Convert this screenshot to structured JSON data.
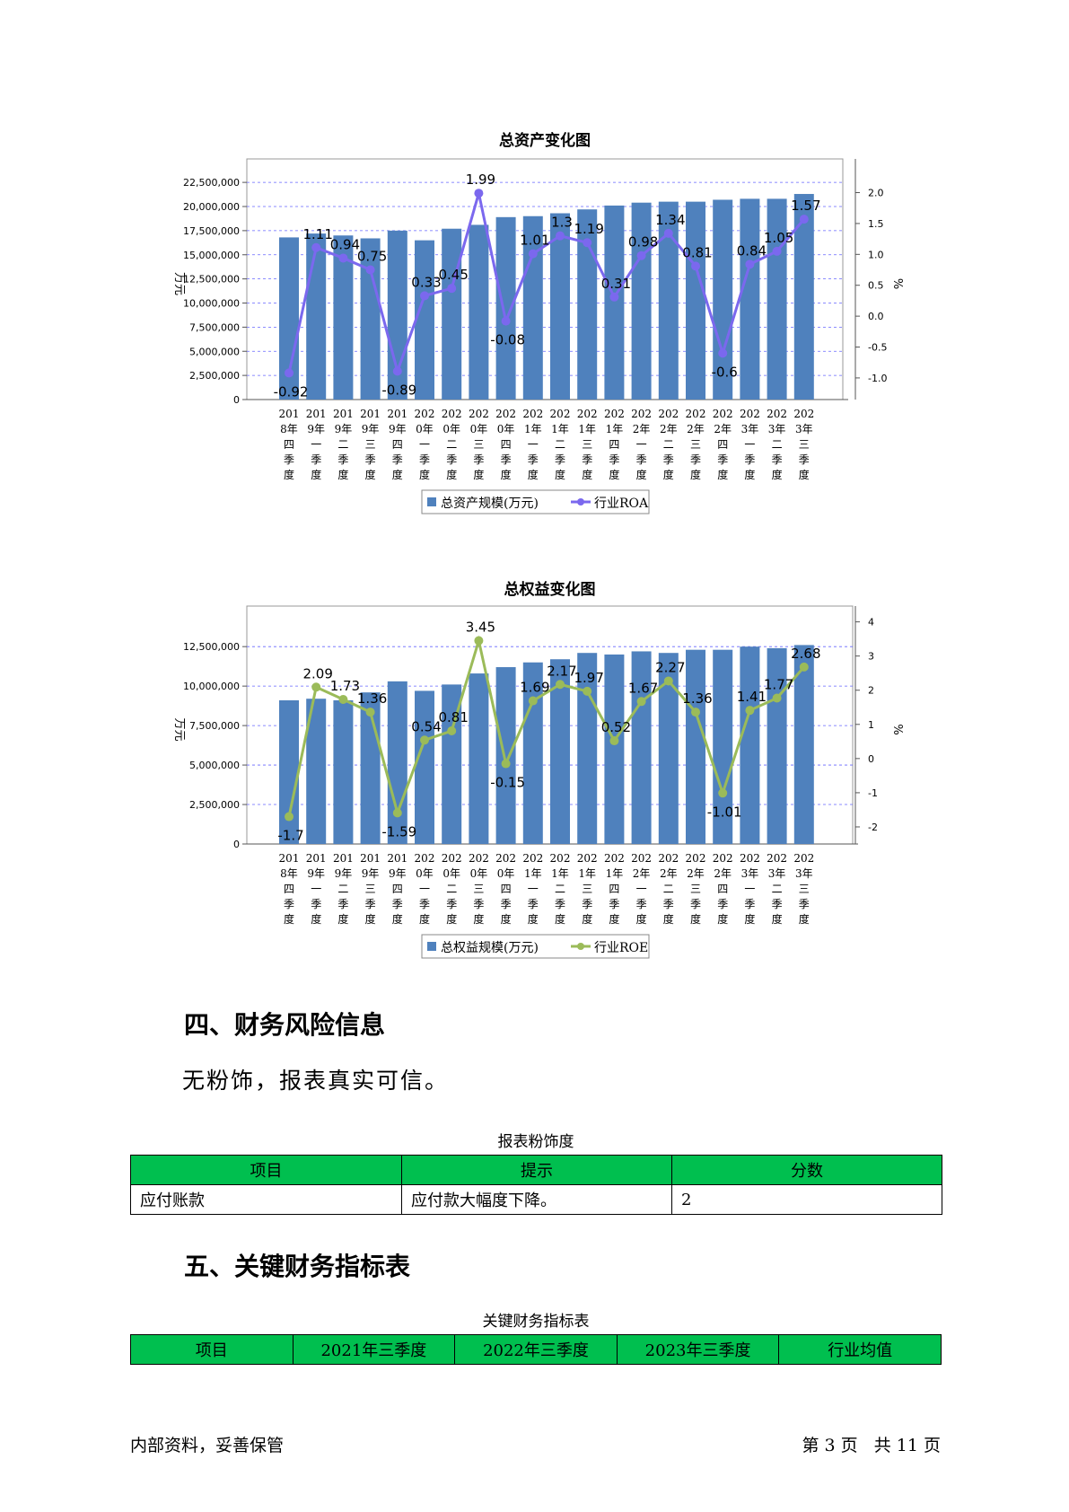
{
  "charts": [
    {
      "title": "总资产变化图",
      "left_axis_label": "万元",
      "right_axis_label": "%",
      "legend_bar": "总资产规模(万元)",
      "legend_line": "行业ROA"
    },
    {
      "title": "总权益变化图",
      "left_axis_label": "万元",
      "right_axis_label": "%",
      "legend_bar": "总权益规模(万元)",
      "legend_line": "行业ROE"
    }
  ],
  "chart_data": [
    {
      "type": "bar",
      "title": "总资产变化图",
      "categories": [
        [
          "201",
          "8年",
          "四",
          "季",
          "度"
        ],
        [
          "201",
          "9年",
          "一",
          "季",
          "度"
        ],
        [
          "201",
          "9年",
          "二",
          "季",
          "度"
        ],
        [
          "201",
          "9年",
          "三",
          "季",
          "度"
        ],
        [
          "201",
          "9年",
          "四",
          "季",
          "度"
        ],
        [
          "202",
          "0年",
          "一",
          "季",
          "度"
        ],
        [
          "202",
          "0年",
          "二",
          "季",
          "度"
        ],
        [
          "202",
          "0年",
          "三",
          "季",
          "度"
        ],
        [
          "202",
          "0年",
          "四",
          "季",
          "度"
        ],
        [
          "202",
          "1年",
          "一",
          "季",
          "度"
        ],
        [
          "202",
          "1年",
          "二",
          "季",
          "度"
        ],
        [
          "202",
          "1年",
          "三",
          "季",
          "度"
        ],
        [
          "202",
          "1年",
          "四",
          "季",
          "度"
        ],
        [
          "202",
          "2年",
          "一",
          "季",
          "度"
        ],
        [
          "202",
          "2年",
          "二",
          "季",
          "度"
        ],
        [
          "202",
          "2年",
          "三",
          "季",
          "度"
        ],
        [
          "202",
          "2年",
          "四",
          "季",
          "度"
        ],
        [
          "202",
          "3年",
          "一",
          "季",
          "度"
        ],
        [
          "202",
          "3年",
          "二",
          "季",
          "度"
        ],
        [
          "202",
          "3年",
          "三",
          "季",
          "度"
        ]
      ],
      "series": [
        {
          "name": "总资产规模(万元)",
          "axis": "left",
          "kind": "bar",
          "color": "#4f81bd",
          "values": [
            16800000,
            17200000,
            17000000,
            16700000,
            17500000,
            16500000,
            17700000,
            18100000,
            18900000,
            19000000,
            19300000,
            19700000,
            20100000,
            20400000,
            20500000,
            20500000,
            20700000,
            20800000,
            20800000,
            21300000
          ]
        },
        {
          "name": "行业ROA",
          "axis": "right",
          "kind": "line",
          "color": "#7b68ee",
          "values": [
            -0.92,
            1.11,
            0.94,
            0.75,
            -0.89,
            0.33,
            0.45,
            1.99,
            -0.08,
            1.01,
            1.3,
            1.19,
            0.31,
            0.98,
            1.34,
            0.81,
            -0.6,
            0.84,
            1.05,
            1.57
          ],
          "labels": [
            "-0.92",
            "1.11",
            "0.94",
            "0.75",
            "-0.89",
            "0.33",
            "0.45",
            "1.99",
            "-0.08",
            "1.01",
            "1.3",
            "1.19",
            "0.31",
            "0.98",
            "1.34",
            "0.81",
            "-0.6",
            "0.84",
            "1.05",
            "1.57"
          ]
        }
      ],
      "left_axis": {
        "min": 0,
        "max": 24000000,
        "ticks": [
          0,
          2500000,
          5000000,
          7500000,
          10000000,
          12500000,
          15000000,
          17500000,
          20000000,
          22500000
        ],
        "tick_labels": [
          "0",
          "2,500,000",
          "5,000,000",
          "7,500,000",
          "10,000,000",
          "12,500,000",
          "15,000,000",
          "17,500,000",
          "20,000,000",
          "22,500,000"
        ]
      },
      "right_axis": {
        "min": -1.35,
        "max": 2.4,
        "ticks": [
          -1.0,
          -0.5,
          0.0,
          0.5,
          1.0,
          1.5,
          2.0
        ],
        "tick_labels": [
          "-1.0",
          "-0.5",
          "0.0",
          "0.5",
          "1.0",
          "1.5",
          "2.0"
        ]
      },
      "grid": "horizontal-dashed",
      "legend": "bottom"
    },
    {
      "type": "bar",
      "title": "总权益变化图",
      "categories": [
        [
          "201",
          "8年",
          "四",
          "季",
          "度"
        ],
        [
          "201",
          "9年",
          "一",
          "季",
          "度"
        ],
        [
          "201",
          "9年",
          "二",
          "季",
          "度"
        ],
        [
          "201",
          "9年",
          "三",
          "季",
          "度"
        ],
        [
          "201",
          "9年",
          "四",
          "季",
          "度"
        ],
        [
          "202",
          "0年",
          "一",
          "季",
          "度"
        ],
        [
          "202",
          "0年",
          "二",
          "季",
          "度"
        ],
        [
          "202",
          "0年",
          "三",
          "季",
          "度"
        ],
        [
          "202",
          "0年",
          "四",
          "季",
          "度"
        ],
        [
          "202",
          "1年",
          "一",
          "季",
          "度"
        ],
        [
          "202",
          "1年",
          "二",
          "季",
          "度"
        ],
        [
          "202",
          "1年",
          "三",
          "季",
          "度"
        ],
        [
          "202",
          "1年",
          "四",
          "季",
          "度"
        ],
        [
          "202",
          "2年",
          "一",
          "季",
          "度"
        ],
        [
          "202",
          "2年",
          "二",
          "季",
          "度"
        ],
        [
          "202",
          "2年",
          "三",
          "季",
          "度"
        ],
        [
          "202",
          "2年",
          "四",
          "季",
          "度"
        ],
        [
          "202",
          "3年",
          "一",
          "季",
          "度"
        ],
        [
          "202",
          "3年",
          "二",
          "季",
          "度"
        ],
        [
          "202",
          "3年",
          "三",
          "季",
          "度"
        ]
      ],
      "series": [
        {
          "name": "总权益规模(万元)",
          "axis": "left",
          "kind": "bar",
          "color": "#4f81bd",
          "values": [
            9100000,
            9200000,
            9100000,
            9600000,
            10300000,
            9700000,
            10100000,
            10800000,
            11200000,
            11500000,
            11700000,
            12100000,
            12000000,
            12200000,
            12100000,
            12300000,
            12300000,
            12500000,
            12400000,
            12600000
          ]
        },
        {
          "name": "行业ROE",
          "axis": "right",
          "kind": "line",
          "color": "#9bbb59",
          "values": [
            -1.7,
            2.09,
            1.73,
            1.36,
            -1.59,
            0.54,
            0.81,
            3.45,
            -0.15,
            1.69,
            2.17,
            1.97,
            0.52,
            1.67,
            2.27,
            1.36,
            -1.01,
            1.41,
            1.77,
            2.68
          ],
          "labels": [
            "-1.7",
            "2.09",
            "1.73",
            "1.36",
            "-1.59",
            "0.54",
            "0.81",
            "3.45",
            "-0.15",
            "1.69",
            "2.17",
            "1.97",
            "0.52",
            "1.67",
            "2.27",
            "1.36",
            "-1.01",
            "1.41",
            "1.77",
            "2.68"
          ]
        }
      ],
      "left_axis": {
        "min": 0,
        "max": 14500000,
        "ticks": [
          0,
          2500000,
          5000000,
          7500000,
          10000000,
          12500000
        ],
        "tick_labels": [
          "0",
          "2,500,000",
          "5,000,000",
          "7,500,000",
          "10,000,000",
          "12,500,000"
        ]
      },
      "right_axis": {
        "min": -2.5,
        "max": 4.2,
        "ticks": [
          -2,
          -1,
          0,
          1,
          2,
          3,
          4
        ],
        "tick_labels": [
          "-2",
          "-1",
          "0",
          "1",
          "2",
          "3",
          "4"
        ]
      },
      "grid": "horizontal-dashed",
      "legend": "bottom"
    }
  ],
  "section4": {
    "heading": "四、财务风险信息",
    "paragraph": "无粉饰，报表真实可信。",
    "table_caption": "报表粉饰度",
    "headers": [
      "项目",
      "提示",
      "分数"
    ],
    "rows": [
      [
        "应付账款",
        "应付款大幅度下降。",
        "2"
      ]
    ]
  },
  "section5": {
    "heading": "五、关键财务指标表",
    "table_caption": "关键财务指标表",
    "headers": [
      "项目",
      "2021年三季度",
      "2022年三季度",
      "2023年三季度",
      "行业均值"
    ]
  },
  "footer": {
    "left": "内部资料，妥善保管",
    "right": "第 3 页   共 11 页"
  },
  "colors": {
    "table_header": "#00bf4f",
    "bar": "#4f81bd",
    "roa_line": "#7b68ee",
    "roe_line": "#9bbb59"
  }
}
